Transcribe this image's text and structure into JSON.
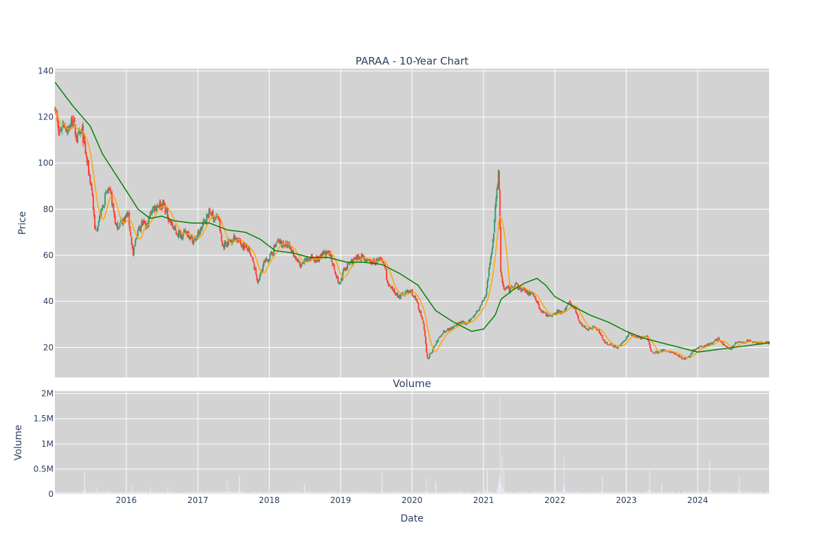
{
  "chart_data": [
    {
      "type": "candlestick",
      "title": "PARAA - 10-Year Chart",
      "ylabel": "Price",
      "ylim": [
        7,
        141
      ],
      "yticks": [
        20,
        40,
        60,
        80,
        100,
        120,
        140
      ],
      "xlim": [
        "2015-01-01",
        "2024-12-31"
      ],
      "grid": true,
      "background": "#d3d3d3",
      "colors": {
        "up": "#3d9970",
        "down": "#ff4136",
        "ma_short": "#ffa500",
        "ma_long": "#008000"
      },
      "anchors": [
        [
          "2015-01-02",
          126
        ],
        [
          "2015-01-20",
          112
        ],
        [
          "2015-02-15",
          118
        ],
        [
          "2015-03-10",
          114
        ],
        [
          "2015-04-01",
          119
        ],
        [
          "2015-04-25",
          110
        ],
        [
          "2015-05-20",
          114
        ],
        [
          "2015-06-15",
          100
        ],
        [
          "2015-07-10",
          88
        ],
        [
          "2015-07-25",
          70
        ],
        [
          "2015-08-10",
          74
        ],
        [
          "2015-09-05",
          82
        ],
        [
          "2015-09-25",
          88
        ],
        [
          "2015-10-15",
          86
        ],
        [
          "2015-11-10",
          72
        ],
        [
          "2015-12-01",
          74
        ],
        [
          "2016-01-10",
          78
        ],
        [
          "2016-02-05",
          60
        ],
        [
          "2016-02-25",
          70
        ],
        [
          "2016-03-20",
          74
        ],
        [
          "2016-04-15",
          72
        ],
        [
          "2016-05-10",
          80
        ],
        [
          "2016-06-10",
          82
        ],
        [
          "2016-07-10",
          82
        ],
        [
          "2016-08-10",
          75
        ],
        [
          "2016-09-10",
          70
        ],
        [
          "2016-10-10",
          69
        ],
        [
          "2016-11-10",
          70
        ],
        [
          "2016-12-10",
          66
        ],
        [
          "2017-01-10",
          70
        ],
        [
          "2017-02-10",
          76
        ],
        [
          "2017-03-05",
          79
        ],
        [
          "2017-03-25",
          76
        ],
        [
          "2017-04-15",
          77
        ],
        [
          "2017-05-05",
          64
        ],
        [
          "2017-06-10",
          66
        ],
        [
          "2017-07-10",
          68
        ],
        [
          "2017-08-10",
          65
        ],
        [
          "2017-09-10",
          63
        ],
        [
          "2017-10-10",
          57
        ],
        [
          "2017-11-05",
          48
        ],
        [
          "2017-12-01",
          56
        ],
        [
          "2018-01-10",
          60
        ],
        [
          "2018-02-10",
          66
        ],
        [
          "2018-03-10",
          65
        ],
        [
          "2018-04-10",
          64
        ],
        [
          "2018-05-10",
          60
        ],
        [
          "2018-06-10",
          55
        ],
        [
          "2018-07-10",
          58
        ],
        [
          "2018-08-10",
          59
        ],
        [
          "2018-09-10",
          58
        ],
        [
          "2018-10-10",
          61
        ],
        [
          "2018-11-10",
          60
        ],
        [
          "2018-12-25",
          47
        ],
        [
          "2019-01-20",
          54
        ],
        [
          "2019-02-20",
          57
        ],
        [
          "2019-03-20",
          58
        ],
        [
          "2019-04-20",
          60
        ],
        [
          "2019-05-20",
          57
        ],
        [
          "2019-06-20",
          57
        ],
        [
          "2019-07-20",
          58
        ],
        [
          "2019-08-15",
          56
        ],
        [
          "2019-08-30",
          47
        ],
        [
          "2019-09-30",
          44
        ],
        [
          "2019-10-30",
          42
        ],
        [
          "2019-11-30",
          44
        ],
        [
          "2019-12-30",
          44
        ],
        [
          "2020-01-30",
          39
        ],
        [
          "2020-02-28",
          30
        ],
        [
          "2020-03-20",
          15
        ],
        [
          "2020-04-10",
          18
        ],
        [
          "2020-05-10",
          23
        ],
        [
          "2020-06-10",
          27
        ],
        [
          "2020-07-10",
          28
        ],
        [
          "2020-08-10",
          30
        ],
        [
          "2020-09-10",
          31
        ],
        [
          "2020-10-10",
          30
        ],
        [
          "2020-11-10",
          34
        ],
        [
          "2020-12-10",
          37
        ],
        [
          "2021-01-10",
          42
        ],
        [
          "2021-02-01",
          55
        ],
        [
          "2021-02-20",
          68
        ],
        [
          "2021-03-05",
          85
        ],
        [
          "2021-03-20",
          97
        ],
        [
          "2021-03-30",
          52
        ],
        [
          "2021-04-15",
          46
        ],
        [
          "2021-05-15",
          45
        ],
        [
          "2021-06-15",
          47
        ],
        [
          "2021-07-15",
          45
        ],
        [
          "2021-08-15",
          44
        ],
        [
          "2021-09-15",
          43
        ],
        [
          "2021-10-15",
          37
        ],
        [
          "2021-11-15",
          34
        ],
        [
          "2021-12-15",
          34
        ],
        [
          "2022-01-15",
          36
        ],
        [
          "2022-02-15",
          35
        ],
        [
          "2022-03-15",
          40
        ],
        [
          "2022-04-15",
          36
        ],
        [
          "2022-05-15",
          30
        ],
        [
          "2022-06-15",
          28
        ],
        [
          "2022-07-15",
          29
        ],
        [
          "2022-08-15",
          27
        ],
        [
          "2022-09-15",
          22
        ],
        [
          "2022-10-15",
          21
        ],
        [
          "2022-11-15",
          20
        ],
        [
          "2022-12-15",
          22
        ],
        [
          "2023-01-15",
          26
        ],
        [
          "2023-02-15",
          25
        ],
        [
          "2023-03-15",
          24
        ],
        [
          "2023-04-15",
          25
        ],
        [
          "2023-05-10",
          18
        ],
        [
          "2023-06-15",
          18
        ],
        [
          "2023-07-15",
          19
        ],
        [
          "2023-08-15",
          18
        ],
        [
          "2023-09-15",
          17
        ],
        [
          "2023-10-15",
          15
        ],
        [
          "2023-11-15",
          16
        ],
        [
          "2023-12-15",
          19
        ],
        [
          "2024-01-15",
          20
        ],
        [
          "2024-02-15",
          21
        ],
        [
          "2024-03-15",
          22
        ],
        [
          "2024-04-15",
          24
        ],
        [
          "2024-05-15",
          21
        ],
        [
          "2024-06-15",
          19
        ],
        [
          "2024-07-15",
          22
        ],
        [
          "2024-08-15",
          22
        ],
        [
          "2024-09-15",
          23
        ],
        [
          "2024-10-15",
          22
        ],
        [
          "2024-11-15",
          22
        ],
        [
          "2024-12-30",
          22
        ]
      ],
      "ma_long_anchors": [
        [
          "2015-01-02",
          135
        ],
        [
          "2015-04-01",
          125
        ],
        [
          "2015-07-01",
          116
        ],
        [
          "2015-09-01",
          104
        ],
        [
          "2015-11-01",
          96
        ],
        [
          "2016-01-01",
          88
        ],
        [
          "2016-03-01",
          80
        ],
        [
          "2016-05-01",
          76
        ],
        [
          "2016-07-01",
          77
        ],
        [
          "2016-09-01",
          75
        ],
        [
          "2016-12-01",
          74
        ],
        [
          "2017-03-01",
          74
        ],
        [
          "2017-06-01",
          71
        ],
        [
          "2017-09-01",
          70
        ],
        [
          "2017-11-15",
          67
        ],
        [
          "2018-02-01",
          62
        ],
        [
          "2018-05-01",
          61
        ],
        [
          "2018-08-01",
          59
        ],
        [
          "2018-11-01",
          59
        ],
        [
          "2019-02-01",
          57
        ],
        [
          "2019-05-01",
          57
        ],
        [
          "2019-08-01",
          56
        ],
        [
          "2019-11-01",
          52
        ],
        [
          "2020-02-01",
          47
        ],
        [
          "2020-05-01",
          36
        ],
        [
          "2020-08-01",
          31
        ],
        [
          "2020-11-01",
          27
        ],
        [
          "2021-01-01",
          28
        ],
        [
          "2021-03-01",
          34
        ],
        [
          "2021-04-01",
          41
        ],
        [
          "2021-06-01",
          45
        ],
        [
          "2021-08-01",
          48
        ],
        [
          "2021-10-01",
          50
        ],
        [
          "2021-11-15",
          47
        ],
        [
          "2022-01-01",
          42
        ],
        [
          "2022-04-01",
          38
        ],
        [
          "2022-07-01",
          34
        ],
        [
          "2022-10-01",
          31
        ],
        [
          "2023-01-01",
          27
        ],
        [
          "2023-04-01",
          24
        ],
        [
          "2023-07-01",
          22
        ],
        [
          "2023-10-01",
          20
        ],
        [
          "2024-01-01",
          18
        ],
        [
          "2024-04-01",
          19
        ],
        [
          "2024-07-01",
          20
        ],
        [
          "2024-10-01",
          21
        ],
        [
          "2024-12-30",
          22
        ]
      ]
    },
    {
      "type": "bar",
      "title": "Volume",
      "xlabel": "Date",
      "ylabel": "Volume",
      "ylim": [
        0,
        2050000
      ],
      "ytick_values": [
        0,
        500000,
        1000000,
        1500000,
        2000000
      ],
      "ytick_labels": [
        "0",
        "0.5M",
        "1M",
        "1.5M",
        "2M"
      ],
      "xtick_values": [
        "2016-01-01",
        "2017-01-01",
        "2018-01-01",
        "2019-01-01",
        "2020-01-01",
        "2021-01-01",
        "2022-01-01",
        "2023-01-01",
        "2024-01-01"
      ],
      "xtick_labels": [
        "2016",
        "2017",
        "2018",
        "2019",
        "2020",
        "2021",
        "2022",
        "2023",
        "2024"
      ],
      "color": "#e8e8f4",
      "baseline": 30000,
      "spikes": [
        [
          "2015-06-01",
          430000
        ],
        [
          "2015-08-01",
          150000
        ],
        [
          "2016-02-01",
          200000
        ],
        [
          "2016-05-01",
          150000
        ],
        [
          "2016-08-01",
          160000
        ],
        [
          "2017-06-01",
          270000
        ],
        [
          "2017-08-01",
          370000
        ],
        [
          "2018-07-01",
          200000
        ],
        [
          "2019-08-01",
          420000
        ],
        [
          "2020-03-15",
          320000
        ],
        [
          "2020-05-01",
          250000
        ],
        [
          "2021-01-20",
          480000
        ],
        [
          "2021-03-26",
          1950000
        ],
        [
          "2021-04-05",
          800000
        ],
        [
          "2021-04-15",
          500000
        ],
        [
          "2022-02-15",
          720000
        ],
        [
          "2022-09-01",
          350000
        ],
        [
          "2023-05-01",
          480000
        ],
        [
          "2023-07-01",
          200000
        ],
        [
          "2024-01-01",
          250000
        ],
        [
          "2024-03-01",
          650000
        ],
        [
          "2024-08-01",
          380000
        ]
      ]
    }
  ]
}
